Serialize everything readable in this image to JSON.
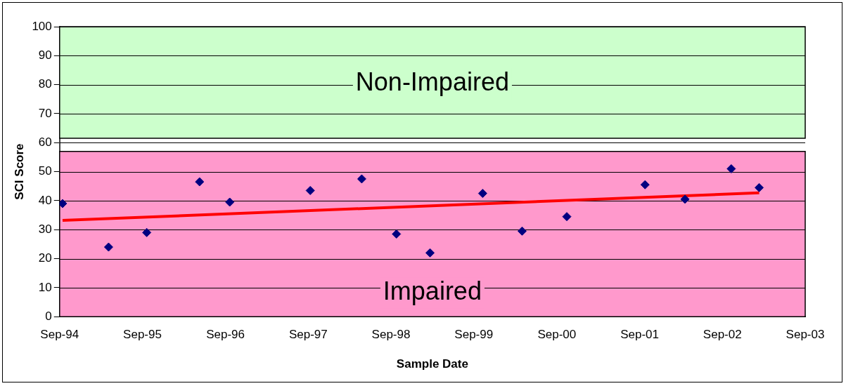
{
  "chart_data": {
    "type": "scatter",
    "xlabel": "Sample Date",
    "ylabel": "SCI Score",
    "series": [
      {
        "color": "#000080",
        "x": [
          "1994-09-14",
          "1995-04-05",
          "1995-09-20",
          "1996-05-10",
          "1996-09-20",
          "1997-09-10",
          "1998-04-25",
          "1998-09-25",
          "1999-02-20",
          "1999-10-10",
          "2000-04-01",
          "2000-10-15",
          "2001-09-25",
          "2002-03-20",
          "2002-10-10",
          "2003-02-10"
        ],
        "values": [
          39,
          24,
          29,
          46.5,
          39.5,
          43.5,
          47.5,
          28.5,
          22,
          42.5,
          29.5,
          34.5,
          45.5,
          40.5,
          51,
          44.5
        ]
      },
      {
        "type": "line",
        "color": "#ff0000",
        "marker": "none",
        "x": [
          "1994-09-14",
          "2003-02-10"
        ],
        "values": [
          33.2,
          42.7
        ]
      }
    ],
    "xlim": [
      "1994-09-01",
      "2003-09-01"
    ],
    "xticks": [
      {
        "value": "1994-09-01",
        "label": "Sep-94"
      },
      {
        "value": "1995-09-01",
        "label": "Sep-95"
      },
      {
        "value": "1996-09-01",
        "label": "Sep-96"
      },
      {
        "value": "1997-09-01",
        "label": "Sep-97"
      },
      {
        "value": "1998-09-01",
        "label": "Sep-98"
      },
      {
        "value": "1999-09-01",
        "label": "Sep-99"
      },
      {
        "value": "2000-09-01",
        "label": "Sep-00"
      },
      {
        "value": "2001-09-01",
        "label": "Sep-01"
      },
      {
        "value": "2002-09-01",
        "label": "Sep-02"
      },
      {
        "value": "2003-09-01",
        "label": "Sep-03"
      }
    ],
    "ylim": [
      0,
      100
    ],
    "yticks": [
      0,
      10,
      20,
      30,
      40,
      50,
      60,
      70,
      80,
      90,
      100
    ],
    "bands": [
      {
        "axis": "y",
        "from": 61.5,
        "to": 100,
        "label": "Non-Impaired",
        "color": "#ccffcc"
      },
      {
        "axis": "y",
        "from": 0,
        "to": 57,
        "label": "Impaired",
        "color": "#ff99cc"
      }
    ],
    "grid": "y",
    "legend": false,
    "marker": "diamond"
  }
}
